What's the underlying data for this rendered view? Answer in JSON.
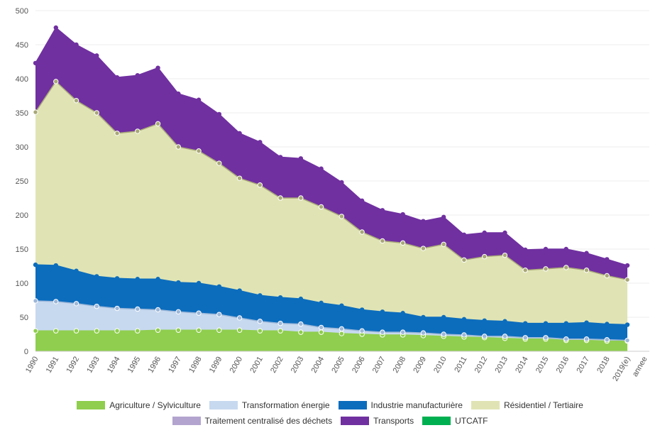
{
  "chart_data": {
    "type": "area",
    "stacked": true,
    "xlabel": "annee",
    "ylim": [
      0,
      500
    ],
    "yticks": [
      0,
      50,
      100,
      150,
      200,
      250,
      300,
      350,
      400,
      450,
      500
    ],
    "grid": true,
    "legend_position": "bottom",
    "categories": [
      "1990",
      "1991",
      "1992",
      "1993",
      "1994",
      "1995",
      "1996",
      "1997",
      "1998",
      "1999",
      "2000",
      "2001",
      "2002",
      "2003",
      "2004",
      "2005",
      "2006",
      "2007",
      "2008",
      "2009",
      "2010",
      "2011",
      "2012",
      "2013",
      "2014",
      "2015",
      "2016",
      "2017",
      "2018",
      "2019(e)"
    ],
    "series": [
      {
        "name": "Agriculture / Sylviculture",
        "color": "#8fce4e",
        "values": [
          30,
          30,
          30,
          30,
          30,
          30,
          31,
          31,
          31,
          31,
          31,
          30,
          30,
          28,
          28,
          26,
          25,
          24,
          24,
          23,
          22,
          21,
          20,
          19,
          18,
          18,
          16,
          16,
          15,
          15
        ]
      },
      {
        "name": "Transformation énergie",
        "color": "#c7d9ef",
        "values": [
          44,
          43,
          40,
          36,
          33,
          32,
          30,
          27,
          25,
          23,
          18,
          14,
          11,
          12,
          7,
          7,
          5,
          4,
          4,
          4,
          3,
          3,
          2,
          3,
          2,
          2,
          2,
          2,
          2,
          1
        ]
      },
      {
        "name": "Industrie manufacturière",
        "color": "#0c6dbd",
        "values": [
          53,
          53,
          48,
          44,
          44,
          44,
          45,
          43,
          44,
          41,
          40,
          38,
          38,
          37,
          36,
          34,
          31,
          30,
          28,
          23,
          25,
          23,
          23,
          22,
          21,
          21,
          23,
          24,
          23,
          23
        ]
      },
      {
        "name": "Résidentiel / Tertiaire",
        "color": "#e0e4b4",
        "values": [
          224,
          270,
          250,
          240,
          213,
          217,
          228,
          199,
          194,
          181,
          165,
          162,
          146,
          148,
          141,
          131,
          114,
          104,
          103,
          101,
          107,
          87,
          94,
          97,
          78,
          80,
          82,
          77,
          71,
          66
        ]
      },
      {
        "name": "Traitement centralisé des déchets",
        "color": "#b3a4cf",
        "values": [
          0,
          0,
          0,
          0,
          0,
          0,
          0,
          0,
          0,
          0,
          0,
          0,
          0,
          0,
          0,
          0,
          0,
          0,
          0,
          0,
          0,
          0,
          0,
          0,
          0,
          0,
          0,
          0,
          0,
          0
        ]
      },
      {
        "name": "Transports",
        "color": "#7030a0",
        "values": [
          72,
          79,
          82,
          84,
          82,
          82,
          82,
          78,
          75,
          72,
          66,
          63,
          60,
          58,
          56,
          50,
          46,
          45,
          42,
          40,
          40,
          37,
          35,
          33,
          30,
          29,
          27,
          25,
          24,
          21
        ]
      },
      {
        "name": "UTCATF",
        "color": "#00b050",
        "values": [
          0,
          0,
          0,
          0,
          0,
          0,
          0,
          0,
          0,
          0,
          0,
          0,
          0,
          0,
          0,
          0,
          0,
          0,
          0,
          0,
          0,
          0,
          0,
          0,
          0,
          0,
          0,
          0,
          0,
          0
        ]
      }
    ]
  }
}
